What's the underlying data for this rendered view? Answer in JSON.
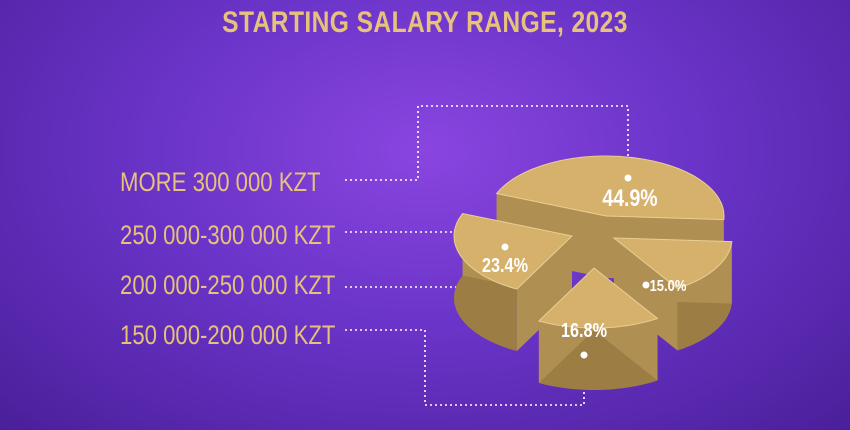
{
  "chart_data": {
    "type": "pie",
    "title": "STARTING SALARY RANGE, 2023",
    "categories": [
      "MORE 300 000 KZT",
      "250 000-300 000 KZT",
      "200 000-250 000 KZT",
      "150 000-200 000 KZT"
    ],
    "values": [
      44.9,
      23.4,
      15.0,
      16.8
    ],
    "labels": [
      "44.9%",
      "23.4%",
      "15.0%",
      "16.8%"
    ],
    "colors": {
      "slice_top": "#d6b16c",
      "slice_side": "#9c7e45",
      "text": "#ffffff",
      "legend_text": "#e6c27a",
      "background_top": "#8a45e0",
      "background_bottom": "#4a1f9a"
    }
  }
}
